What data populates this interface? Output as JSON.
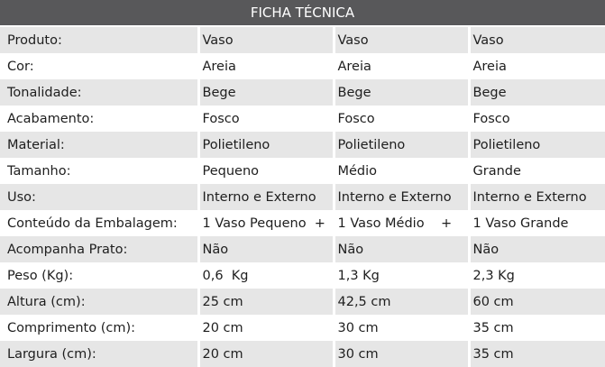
{
  "title": "FICHA TÉCNICA",
  "rows": [
    {
      "label": "Produto:",
      "values": [
        "Vaso",
        "Vaso",
        "Vaso"
      ]
    },
    {
      "label": "Cor:",
      "values": [
        "Areia",
        "Areia",
        "Areia"
      ]
    },
    {
      "label": "Tonalidade:",
      "values": [
        "Bege",
        "Bege",
        "Bege"
      ]
    },
    {
      "label": "Acabamento:",
      "values": [
        "Fosco",
        "Fosco",
        "Fosco"
      ]
    },
    {
      "label": "Material:",
      "values": [
        "Polietileno",
        "Polietileno",
        "Polietileno"
      ]
    },
    {
      "label": "Tamanho:",
      "values": [
        "Pequeno",
        "Médio",
        "Grande"
      ]
    },
    {
      "label": "Uso:",
      "values": [
        "Interno e Externo",
        "Interno e Externo",
        "Interno e Externo"
      ]
    },
    {
      "label": "Conteúdo da Embalagem:",
      "values": [
        "1 Vaso Pequeno  +",
        "1 Vaso Médio    +",
        "1 Vaso Grande"
      ]
    },
    {
      "label": "Acompanha Prato:",
      "values": [
        "Não",
        "Não",
        "Não"
      ]
    },
    {
      "label": "Peso (Kg):",
      "values": [
        "0,6  Kg",
        "1,3 Kg",
        "2,3 Kg"
      ]
    },
    {
      "label": "Altura (cm):",
      "values": [
        "25 cm",
        "42,5 cm",
        "60 cm"
      ]
    },
    {
      "label": "Comprimento (cm):",
      "values": [
        "20 cm",
        "30 cm",
        "35 cm"
      ]
    },
    {
      "label": "Largura (cm):",
      "values": [
        "20 cm",
        "30 cm",
        "35 cm"
      ]
    }
  ],
  "colors": {
    "header_bg": "#58585a",
    "stripe": "#e6e6e6"
  }
}
